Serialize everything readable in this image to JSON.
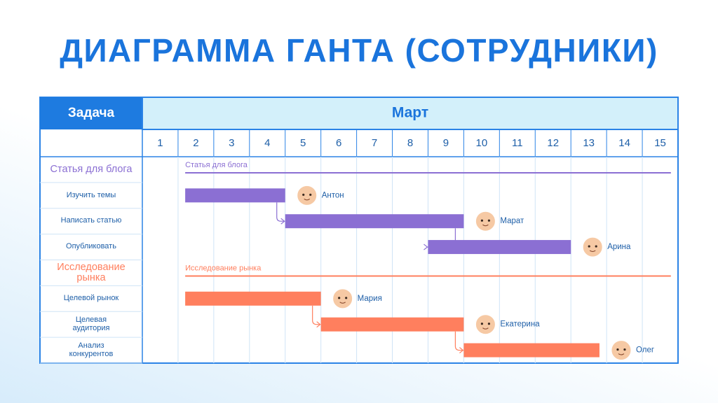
{
  "chart_data": {
    "type": "gantt",
    "title": "ДИАГРАММА ГАНТА (СОТРУДНИКИ)",
    "task_header": "Задача",
    "period": "Март",
    "xlim": [
      1,
      16
    ],
    "xticks": [
      1,
      2,
      3,
      4,
      5,
      6,
      7,
      8,
      9,
      10,
      11,
      12,
      13,
      14,
      15
    ],
    "groups": [
      {
        "name": "Статья для блога",
        "color": "#8b6fd3",
        "start": 2.2,
        "end": 15.8,
        "tasks": [
          {
            "name": "Изучить темы",
            "assignee": "Антон",
            "start": 2.2,
            "end": 5
          },
          {
            "name": "Написать статью",
            "assignee": "Марат",
            "start": 5,
            "end": 10
          },
          {
            "name": "Опубликовать",
            "assignee": "Арина",
            "start": 9,
            "end": 13
          }
        ]
      },
      {
        "name": "Исследование рынка",
        "color": "#ff7f5e",
        "start": 2.2,
        "end": 15.8,
        "tasks": [
          {
            "name": "Целевой рынок",
            "assignee": "Мария",
            "start": 2.2,
            "end": 6
          },
          {
            "name": "Целевая аудитория",
            "assignee": "Екатерина",
            "start": 6,
            "end": 10
          },
          {
            "name": "Анализ конкурентов",
            "assignee": "Олег",
            "start": 10,
            "end": 13.8
          }
        ]
      }
    ]
  }
}
